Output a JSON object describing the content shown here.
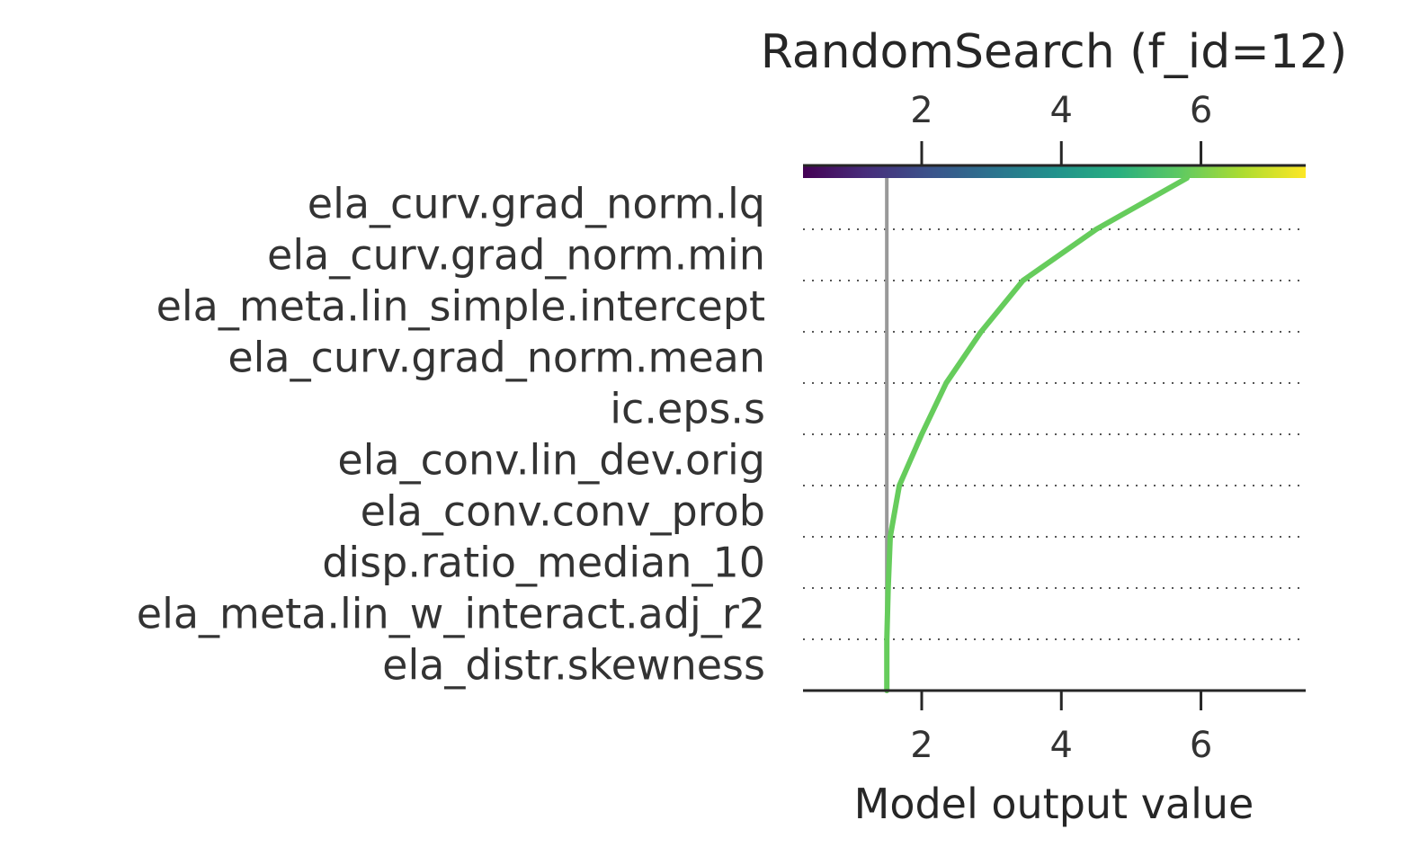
{
  "chart_data": {
    "type": "line",
    "chart_kind": "decision plot",
    "title": "RandomSearch (f_id=12)",
    "xlabel": "Model output value",
    "ylabel": "",
    "xlim": [
      0.3,
      7.5
    ],
    "xticks": [
      2,
      4,
      6
    ],
    "base_value": 1.5,
    "colorbar": {
      "colormap": "viridis",
      "range": [
        0.3,
        7.5
      ],
      "position": "top"
    },
    "grid": "horizontal dotted",
    "features": [
      "ela_curv.grad_norm.lq",
      "ela_curv.grad_norm.min",
      "ela_meta.lin_simple.intercept",
      "ela_curv.grad_norm.mean",
      "ic.eps.s",
      "ela_conv.lin_dev.orig",
      "ela_conv.conv_prob",
      "disp.ratio_median_10",
      "ela_meta.lin_w_interact.adj_r2",
      "ela_distr.skewness"
    ],
    "series": [
      {
        "color": "#66cc5c",
        "path_values": [
          1.5,
          1.5,
          1.52,
          1.55,
          1.68,
          2.0,
          2.35,
          2.85,
          3.45,
          4.5,
          5.8
        ]
      }
    ],
    "colors": {
      "line": "#66cc5c",
      "base_line": "#999999",
      "axis": "#262626",
      "grid": "#555555"
    }
  }
}
